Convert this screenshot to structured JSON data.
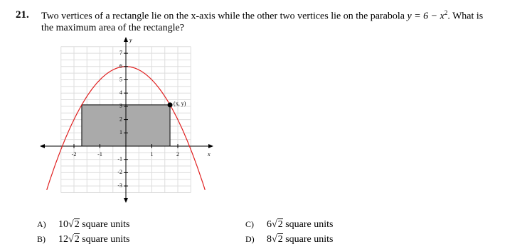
{
  "question": {
    "number": "21.",
    "text_before": "Two vertices of a rectangle lie on the x-axis while the other two vertices lie on the parabola",
    "equation": "y = 6 − x",
    "exponent": "2",
    "text_after": ". What is",
    "line2": "the maximum area of the rectangle?"
  },
  "graph": {
    "x_label": "x",
    "y_label": "y",
    "point_label": "(x, y)",
    "x_ticks": [
      -2,
      -1,
      1,
      2
    ],
    "y_ticks": [
      -3,
      -2,
      -1,
      1,
      2,
      3,
      4,
      5,
      6,
      7
    ]
  },
  "choices": [
    {
      "label": "A)",
      "expression": "10√",
      "radicand": "2",
      "unit": "square units"
    },
    {
      "label": "B)",
      "expression": "12√",
      "radicand": "2",
      "unit": "square units"
    },
    {
      "label": "C)",
      "expression": "6√",
      "radicand": "2",
      "unit": "square units"
    },
    {
      "label": "D)",
      "expression": "8√",
      "radicand": "2",
      "unit": "square units"
    }
  ]
}
